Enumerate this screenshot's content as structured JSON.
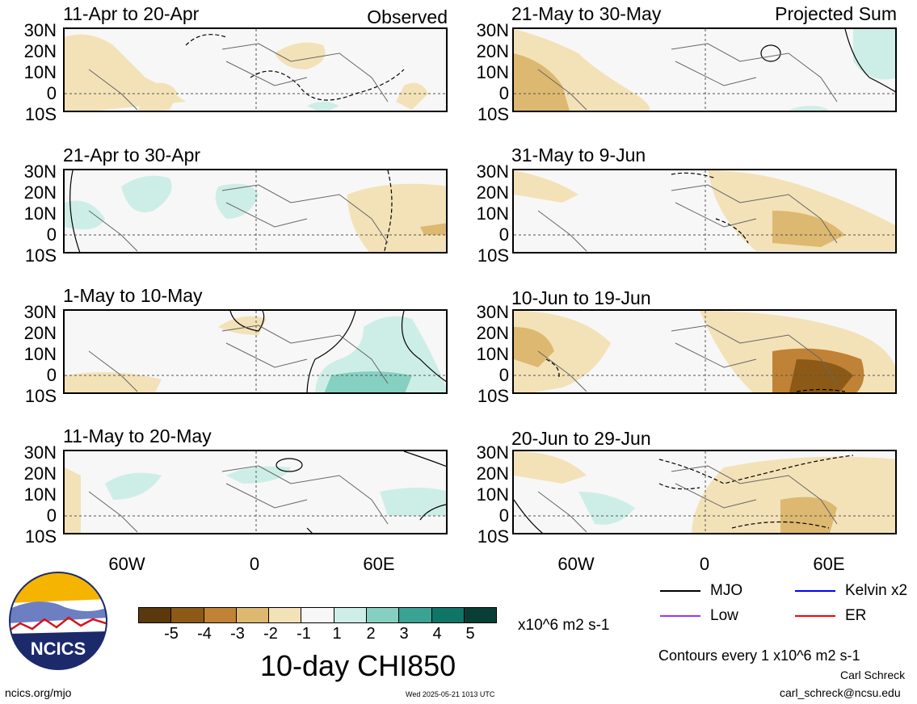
{
  "panels": [
    {
      "title": "11-Apr to 20-Apr",
      "corner": "Observed"
    },
    {
      "title": "21-May to 30-May",
      "corner": "Projected Sum"
    },
    {
      "title": "21-Apr to 30-Apr",
      "corner": ""
    },
    {
      "title": "31-May to 9-Jun",
      "corner": ""
    },
    {
      "title": "1-May to 10-May",
      "corner": ""
    },
    {
      "title": "10-Jun to 19-Jun",
      "corner": ""
    },
    {
      "title": "11-May to 20-May",
      "corner": ""
    },
    {
      "title": "20-Jun to 29-Jun",
      "corner": ""
    }
  ],
  "lat_labels": [
    "30N",
    "20N",
    "10N",
    "0",
    "10S"
  ],
  "lon_labels": [
    "60W",
    "0",
    "60E"
  ],
  "colorbar": {
    "ticks": [
      "-5",
      "-4",
      "-3",
      "-2",
      "-1",
      "1",
      "2",
      "3",
      "4",
      "5"
    ],
    "colors": [
      "#5a3a0c",
      "#8c5a16",
      "#c08236",
      "#ddb870",
      "#f3e2b8",
      "#f7f7f7",
      "#cdeee6",
      "#86d0c2",
      "#3aa393",
      "#0f7567",
      "#083e35"
    ],
    "units": "x10^6 m2 s-1"
  },
  "main_title": "10-day CHI850",
  "legend": [
    {
      "label": "MJO",
      "color": "#000000"
    },
    {
      "label": "Kelvin x2",
      "color": "#0000ff"
    },
    {
      "label": "Low",
      "color": "#9933ff"
    },
    {
      "label": "ER",
      "color": "#ff0000"
    }
  ],
  "contours_note": "Contours every 1 x10^6 m2 s-1",
  "author": "Carl Schreck",
  "email": "carl_schreck@ncsu.edu",
  "url": "ncics.org/mjo",
  "timestamp": "Wed 2025-05-21 1013 UTC",
  "logo_text": "NCICS"
}
